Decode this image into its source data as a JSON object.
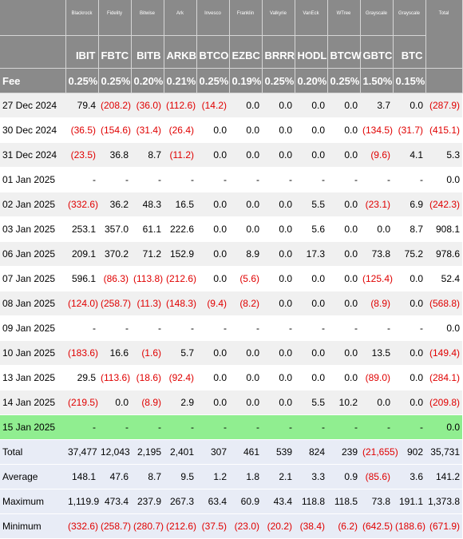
{
  "header": {
    "issuers": [
      "Blackrock",
      "Fidelity",
      "Bitwise",
      "Ark",
      "Invesco",
      "Franklin",
      "Valkyrie",
      "VanEck",
      "WTree",
      "Grayscale",
      "Grayscale"
    ],
    "tickers": [
      "IBIT",
      "FBTC",
      "BITB",
      "ARKB",
      "BTCO",
      "EZBC",
      "BRRR",
      "HODL",
      "BTCW",
      "GBTC",
      "BTC"
    ],
    "total_label": "Total",
    "fee_label": "Fee",
    "fees": [
      "0.25%",
      "0.25%",
      "0.20%",
      "0.21%",
      "0.25%",
      "0.19%",
      "0.25%",
      "0.20%",
      "0.25%",
      "1.50%",
      "0.15%"
    ]
  },
  "rows": [
    {
      "date": "27 Dec 2024",
      "values": [
        "79.4",
        "(208.2)",
        "(36.0)",
        "(112.6)",
        "(14.2)",
        "0.0",
        "0.0",
        "0.0",
        "0.0",
        "3.7",
        "0.0"
      ],
      "total": "(287.9)"
    },
    {
      "date": "30 Dec 2024",
      "values": [
        "(36.5)",
        "(154.6)",
        "(31.4)",
        "(26.4)",
        "0.0",
        "0.0",
        "0.0",
        "0.0",
        "0.0",
        "(134.5)",
        "(31.7)"
      ],
      "total": "(415.1)"
    },
    {
      "date": "31 Dec 2024",
      "values": [
        "(23.5)",
        "36.8",
        "8.7",
        "(11.2)",
        "0.0",
        "0.0",
        "0.0",
        "0.0",
        "0.0",
        "(9.6)",
        "4.1"
      ],
      "total": "5.3"
    },
    {
      "date": "01 Jan 2025",
      "values": [
        "-",
        "-",
        "-",
        "-",
        "-",
        "-",
        "-",
        "-",
        "-",
        "-",
        "-"
      ],
      "total": "0.0"
    },
    {
      "date": "02 Jan 2025",
      "values": [
        "(332.6)",
        "36.2",
        "48.3",
        "16.5",
        "0.0",
        "0.0",
        "0.0",
        "5.5",
        "0.0",
        "(23.1)",
        "6.9"
      ],
      "total": "(242.3)"
    },
    {
      "date": "03 Jan 2025",
      "values": [
        "253.1",
        "357.0",
        "61.1",
        "222.6",
        "0.0",
        "0.0",
        "0.0",
        "5.6",
        "0.0",
        "0.0",
        "8.7"
      ],
      "total": "908.1"
    },
    {
      "date": "06 Jan 2025",
      "values": [
        "209.1",
        "370.2",
        "71.2",
        "152.9",
        "0.0",
        "8.9",
        "0.0",
        "17.3",
        "0.0",
        "73.8",
        "75.2"
      ],
      "total": "978.6"
    },
    {
      "date": "07 Jan 2025",
      "values": [
        "596.1",
        "(86.3)",
        "(113.8)",
        "(212.6)",
        "0.0",
        "(5.6)",
        "0.0",
        "0.0",
        "0.0",
        "(125.4)",
        "0.0"
      ],
      "total": "52.4"
    },
    {
      "date": "08 Jan 2025",
      "values": [
        "(124.0)",
        "(258.7)",
        "(11.3)",
        "(148.3)",
        "(9.4)",
        "(8.2)",
        "0.0",
        "0.0",
        "0.0",
        "(8.9)",
        "0.0"
      ],
      "total": "(568.8)"
    },
    {
      "date": "09 Jan 2025",
      "values": [
        "-",
        "-",
        "-",
        "-",
        "-",
        "-",
        "-",
        "-",
        "-",
        "-",
        "-"
      ],
      "total": "0.0"
    },
    {
      "date": "10 Jan 2025",
      "values": [
        "(183.6)",
        "16.6",
        "(1.6)",
        "5.7",
        "0.0",
        "0.0",
        "0.0",
        "0.0",
        "0.0",
        "13.5",
        "0.0"
      ],
      "total": "(149.4)"
    },
    {
      "date": "13 Jan 2025",
      "values": [
        "29.5",
        "(113.6)",
        "(18.6)",
        "(92.4)",
        "0.0",
        "0.0",
        "0.0",
        "0.0",
        "0.0",
        "(89.0)",
        "0.0"
      ],
      "total": "(284.1)"
    },
    {
      "date": "14 Jan 2025",
      "values": [
        "(219.5)",
        "0.0",
        "(8.9)",
        "2.9",
        "0.0",
        "0.0",
        "0.0",
        "5.5",
        "10.2",
        "0.0",
        "0.0"
      ],
      "total": "(209.8)"
    },
    {
      "date": "15 Jan 2025",
      "values": [
        "-",
        "-",
        "-",
        "-",
        "-",
        "-",
        "-",
        "-",
        "-",
        "-",
        "-"
      ],
      "total": "0.0",
      "highlight": true
    }
  ],
  "summary": [
    {
      "label": "Total",
      "values": [
        "37,477",
        "12,043",
        "2,195",
        "2,401",
        "307",
        "461",
        "539",
        "824",
        "239",
        "(21,655)",
        "902"
      ],
      "total": "35,731"
    },
    {
      "label": "Average",
      "values": [
        "148.1",
        "47.6",
        "8.7",
        "9.5",
        "1.2",
        "1.8",
        "2.1",
        "3.3",
        "0.9",
        "(85.6)",
        "3.6"
      ],
      "total": "141.2"
    },
    {
      "label": "Maximum",
      "values": [
        "1,119.9",
        "473.4",
        "237.9",
        "267.3",
        "63.4",
        "60.9",
        "43.4",
        "118.8",
        "118.5",
        "73.8",
        "191.1"
      ],
      "total": "1,373.8"
    },
    {
      "label": "Minimum",
      "values": [
        "(332.6)",
        "(258.7)",
        "(280.7)",
        "(212.6)",
        "(37.5)",
        "(23.0)",
        "(20.2)",
        "(38.4)",
        "(6.2)",
        "(642.5)",
        "(188.6)"
      ],
      "total": "(671.9)"
    }
  ],
  "colors": {
    "header_bg": "#8a8a8a",
    "negative": "#e00000",
    "highlight_row": "#90ee90",
    "summary_bg": "#e8ecf6"
  }
}
